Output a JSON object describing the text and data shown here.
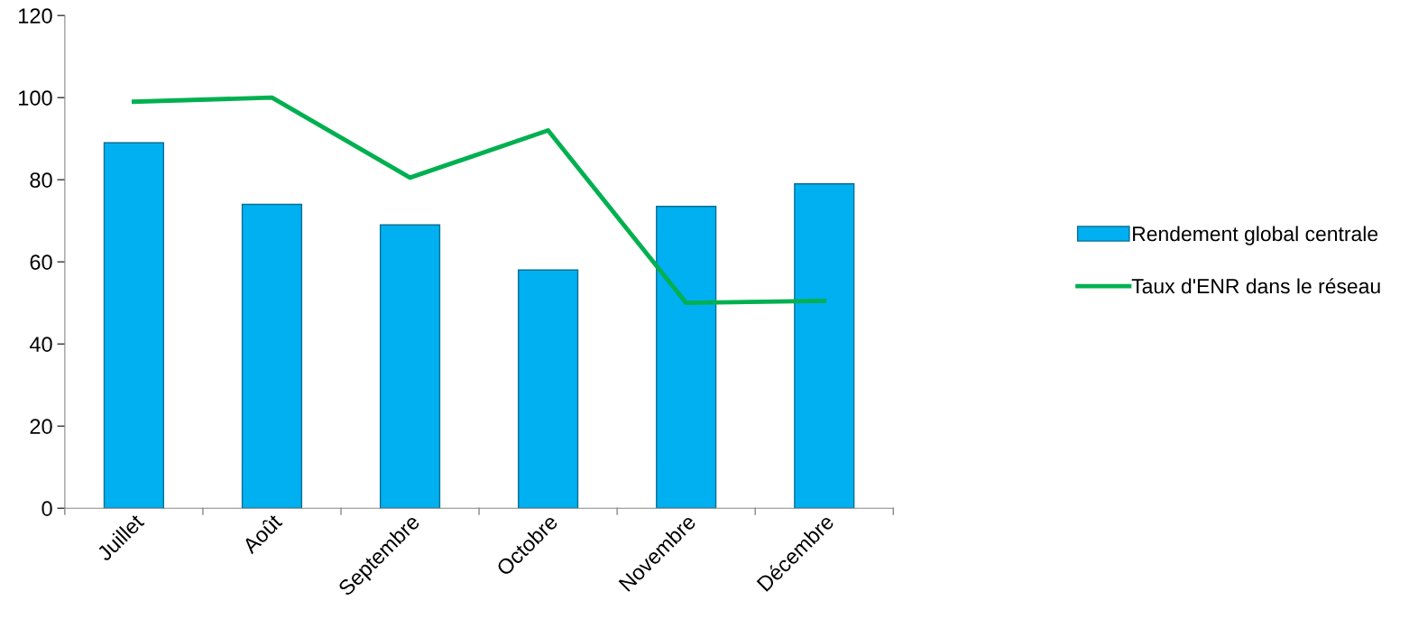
{
  "chart_data": {
    "type": "bar",
    "categories": [
      "Juillet",
      "Août",
      "Septembre",
      "Octobre",
      "Novembre",
      "Décembre"
    ],
    "series": [
      {
        "name": "Rendement global centrale",
        "color": "#00b0f0",
        "values": [
          89,
          74,
          69,
          58,
          73.5,
          79
        ]
      },
      {
        "name": "Taux d'ENR dans le réseau",
        "type": "line",
        "color": "#00b050",
        "values": [
          99,
          100,
          80.5,
          92,
          50,
          50.5
        ]
      }
    ],
    "ylim": [
      0,
      120
    ],
    "yticks": [
      0,
      20,
      40,
      60,
      80,
      100,
      120
    ],
    "grid": false,
    "legend": "right",
    "marker": "none",
    "line_style": "solid"
  }
}
